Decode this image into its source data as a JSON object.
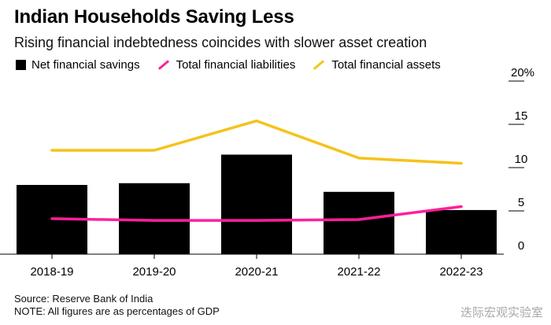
{
  "title": "Indian Households Saving Less",
  "subtitle": "Rising financial indebtedness coincides with slower asset creation",
  "source": "Source: Reserve Bank of India",
  "note": "NOTE: All figures are as percentages of GDP",
  "watermark": "迭际宏观实验室",
  "colors": {
    "bars": "#000000",
    "liabilities": "#ff1f9a",
    "assets": "#f5c31a",
    "axis": "#000000"
  },
  "chart_data": {
    "type": "bar",
    "categories": [
      "2018-19",
      "2019-20",
      "2020-21",
      "2021-22",
      "2022-23"
    ],
    "series": [
      {
        "name": "Net financial savings",
        "kind": "bar",
        "values": [
          8.0,
          8.2,
          11.5,
          7.2,
          5.1
        ]
      },
      {
        "name": "Total financial liabilities",
        "kind": "line",
        "values": [
          4.1,
          3.9,
          3.9,
          4.0,
          5.5
        ]
      },
      {
        "name": "Total financial assets",
        "kind": "line",
        "values": [
          12.0,
          12.0,
          15.4,
          11.1,
          10.5
        ]
      }
    ],
    "y_ticks": [
      "0",
      "5",
      "10",
      "15",
      "20%"
    ],
    "ylim": [
      0,
      20
    ],
    "legend_position": "top-left",
    "grid": false
  }
}
